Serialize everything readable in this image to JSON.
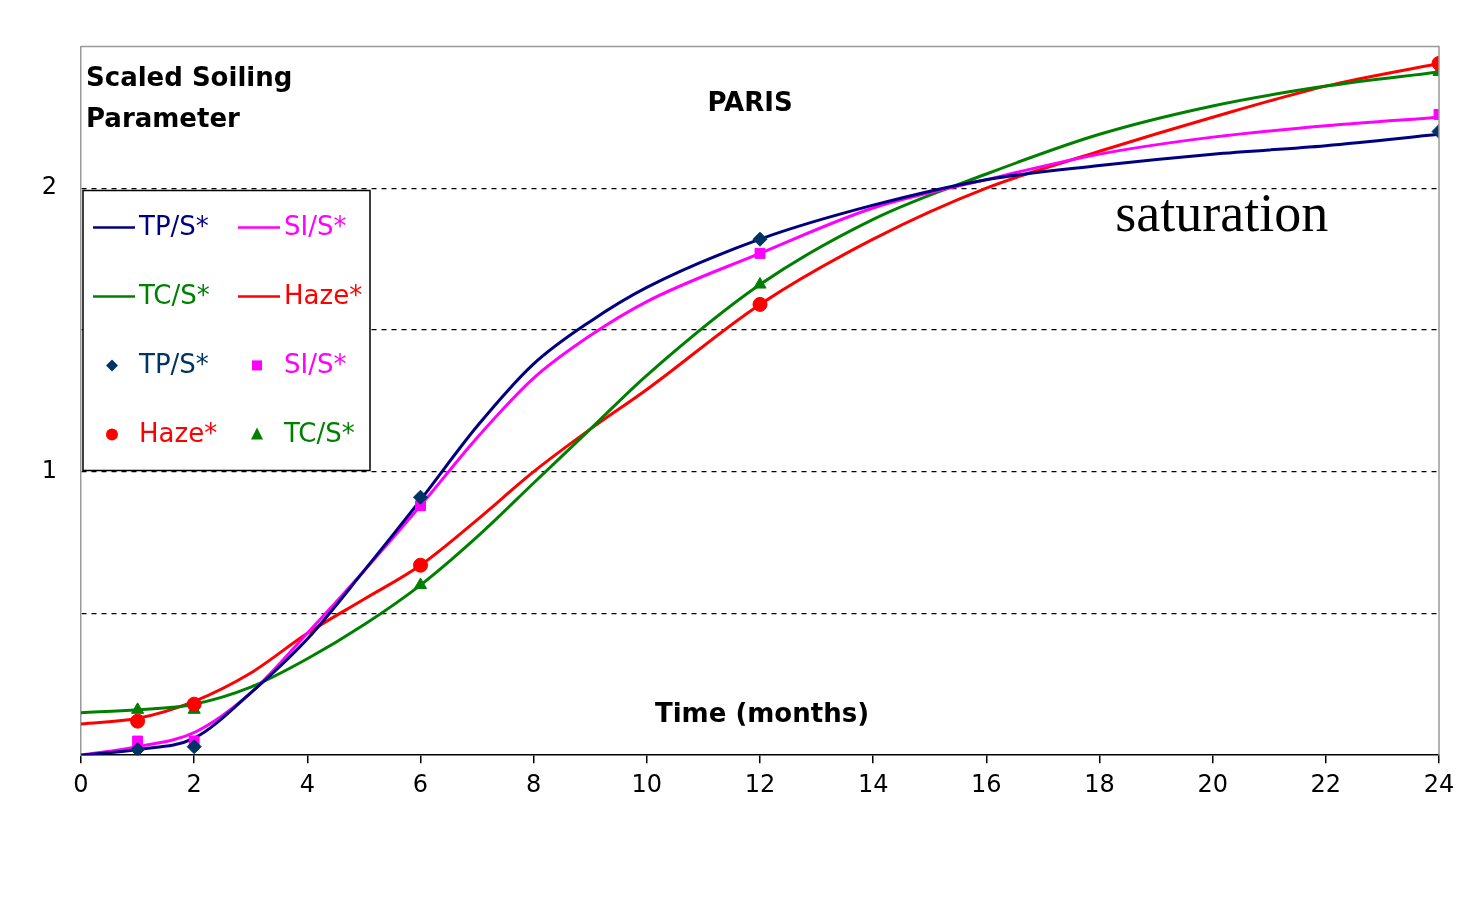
{
  "chart_data": {
    "type": "line",
    "title": "PARIS",
    "xlabel": "Time (months)",
    "ylabel": "Scaled Soiling Parameter",
    "annotations": [
      "saturation"
    ],
    "xlim": [
      0,
      24
    ],
    "xticks": [
      0,
      2,
      4,
      6,
      8,
      10,
      12,
      14,
      16,
      18,
      20,
      22,
      24
    ],
    "ylim": [
      0,
      2.5
    ],
    "yticks": [
      {
        "value": 0.5,
        "label": null
      },
      1,
      {
        "value": 1.5,
        "label": null
      },
      2
    ],
    "grid": "y",
    "legend": "top left",
    "series": [
      {
        "name": "TP/S*",
        "color": "#000080",
        "marker": "none",
        "line_style": "solid",
        "x": [
          0,
          1,
          2,
          3,
          4,
          5,
          6,
          7,
          8,
          9,
          10,
          12,
          14,
          16,
          18,
          20,
          22,
          24
        ],
        "values": [
          0,
          0.02,
          0.06,
          0.22,
          0.41,
          0.65,
          0.9,
          1.16,
          1.38,
          1.53,
          1.65,
          1.82,
          1.94,
          2.03,
          2.08,
          2.12,
          2.15,
          2.19
        ]
      },
      {
        "name": "SI/S*",
        "color": "#ff00ff",
        "marker": "none",
        "line_style": "solid",
        "x": [
          0,
          1,
          2,
          3,
          4,
          5,
          6,
          7,
          8,
          9,
          10,
          12,
          14,
          16,
          18,
          20,
          22,
          24
        ],
        "values": [
          0,
          0.03,
          0.08,
          0.22,
          0.43,
          0.65,
          0.88,
          1.12,
          1.33,
          1.48,
          1.6,
          1.77,
          1.93,
          2.03,
          2.12,
          2.18,
          2.22,
          2.25
        ]
      },
      {
        "name": "TC/S*",
        "color": "#008000",
        "marker": "none",
        "line_style": "solid",
        "x": [
          0,
          1,
          2,
          3,
          4,
          5,
          6,
          7,
          8,
          9,
          10,
          12,
          14,
          16,
          18,
          20,
          22,
          24
        ],
        "values": [
          0.15,
          0.16,
          0.18,
          0.24,
          0.34,
          0.46,
          0.6,
          0.77,
          0.96,
          1.15,
          1.34,
          1.66,
          1.89,
          2.05,
          2.19,
          2.29,
          2.36,
          2.41
        ]
      },
      {
        "name": "Haze*",
        "color": "#ff0000",
        "marker": "none",
        "line_style": "solid",
        "x": [
          0,
          1,
          2,
          3,
          4,
          5,
          6,
          7,
          8,
          9,
          10,
          12,
          14,
          16,
          18,
          20,
          22,
          24
        ],
        "values": [
          0.11,
          0.13,
          0.19,
          0.29,
          0.43,
          0.55,
          0.67,
          0.83,
          1.0,
          1.15,
          1.29,
          1.59,
          1.82,
          2.0,
          2.13,
          2.25,
          2.36,
          2.44
        ]
      },
      {
        "name": "TP/S*",
        "type": "scatter",
        "color": "#003366",
        "marker": "diamond",
        "x": [
          1,
          2,
          6,
          12,
          24
        ],
        "values": [
          0.02,
          0.03,
          0.91,
          1.82,
          2.2
        ]
      },
      {
        "name": "SI/S*",
        "type": "scatter",
        "color": "#ff00ff",
        "marker": "square",
        "x": [
          1,
          2,
          6,
          12,
          24
        ],
        "values": [
          0.05,
          0.05,
          0.88,
          1.77,
          2.26
        ]
      },
      {
        "name": "Haze*",
        "type": "scatter",
        "color": "#ff0000",
        "marker": "circle",
        "x": [
          1,
          2,
          6,
          12,
          24
        ],
        "values": [
          0.12,
          0.18,
          0.67,
          1.59,
          2.44
        ]
      },
      {
        "name": "TC/S*",
        "type": "scatter",
        "color": "#008000",
        "marker": "triangle",
        "x": [
          1,
          2,
          6,
          12,
          24
        ],
        "values": [
          0.16,
          0.16,
          0.6,
          1.66,
          2.41
        ]
      }
    ]
  }
}
